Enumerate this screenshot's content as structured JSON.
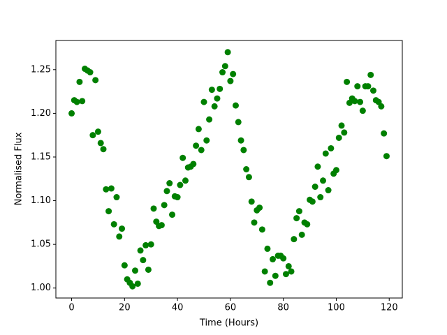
{
  "chart_data": {
    "type": "scatter",
    "xlabel": "Time (Hours)",
    "ylabel": "Normalised Flux",
    "color": "#008000",
    "x": [
      0,
      1,
      2,
      3,
      4,
      5,
      6,
      7,
      8,
      9,
      10,
      11,
      12,
      13,
      14,
      15,
      16,
      17,
      18,
      19,
      20,
      21,
      22,
      23,
      24,
      25,
      26,
      27,
      28,
      29,
      30,
      31,
      32,
      33,
      34,
      35,
      36,
      37,
      38,
      39,
      40,
      41,
      42,
      43,
      44,
      45,
      46,
      47,
      48,
      49,
      50,
      51,
      52,
      53,
      54,
      55,
      56,
      57,
      58,
      59,
      60,
      61,
      62,
      63,
      64,
      65,
      66,
      67,
      68,
      69,
      70,
      71,
      72,
      73,
      74,
      75,
      76,
      77,
      78,
      79,
      80,
      81,
      82,
      83,
      84,
      85,
      86,
      87,
      88,
      89,
      90,
      91,
      92,
      93,
      94,
      95,
      96,
      97,
      98,
      99,
      100,
      101,
      102,
      103,
      104,
      105,
      106,
      107,
      108,
      109,
      110,
      111,
      112,
      113,
      114,
      115,
      116,
      117,
      118,
      119
    ],
    "values": [
      1.2,
      1.215,
      1.213,
      1.236,
      1.214,
      1.251,
      1.249,
      1.247,
      1.175,
      1.238,
      1.179,
      1.166,
      1.159,
      1.113,
      1.088,
      1.114,
      1.073,
      1.104,
      1.059,
      1.068,
      1.026,
      1.01,
      1.006,
      1.002,
      1.02,
      1.005,
      1.043,
      1.032,
      1.049,
      1.021,
      1.05,
      1.091,
      1.076,
      1.071,
      1.072,
      1.095,
      1.111,
      1.12,
      1.084,
      1.105,
      1.104,
      1.118,
      1.149,
      1.123,
      1.138,
      1.139,
      1.142,
      1.163,
      1.182,
      1.158,
      1.213,
      1.169,
      1.193,
      1.227,
      1.208,
      1.217,
      1.228,
      1.247,
      1.254,
      1.27,
      1.237,
      1.245,
      1.209,
      1.19,
      1.169,
      1.158,
      1.136,
      1.127,
      1.099,
      1.075,
      1.089,
      1.092,
      1.067,
      1.019,
      1.045,
      1.006,
      1.033,
      1.014,
      1.037,
      1.037,
      1.034,
      1.016,
      1.025,
      1.019,
      1.056,
      1.08,
      1.088,
      1.061,
      1.075,
      1.073,
      1.101,
      1.099,
      1.116,
      1.139,
      1.104,
      1.123,
      1.154,
      1.112,
      1.16,
      1.131,
      1.135,
      1.172,
      1.186,
      1.178,
      1.236,
      1.212,
      1.217,
      1.214,
      1.231,
      1.213,
      1.203,
      1.231,
      1.231,
      1.244,
      1.226,
      1.215,
      1.213,
      1.208,
      1.177,
      1.151
    ],
    "xlim": [
      -5.95,
      124.95
    ],
    "ylim": [
      0.9886,
      1.2834
    ],
    "xticks": [
      0,
      20,
      40,
      60,
      80,
      100,
      120
    ],
    "yticks": [
      {
        "value": 1.0,
        "label": "1.00"
      },
      1.05,
      {
        "value": 1.1,
        "label": "1.10"
      },
      1.15,
      {
        "value": 1.2,
        "label": "1.20"
      },
      1.25
    ]
  }
}
